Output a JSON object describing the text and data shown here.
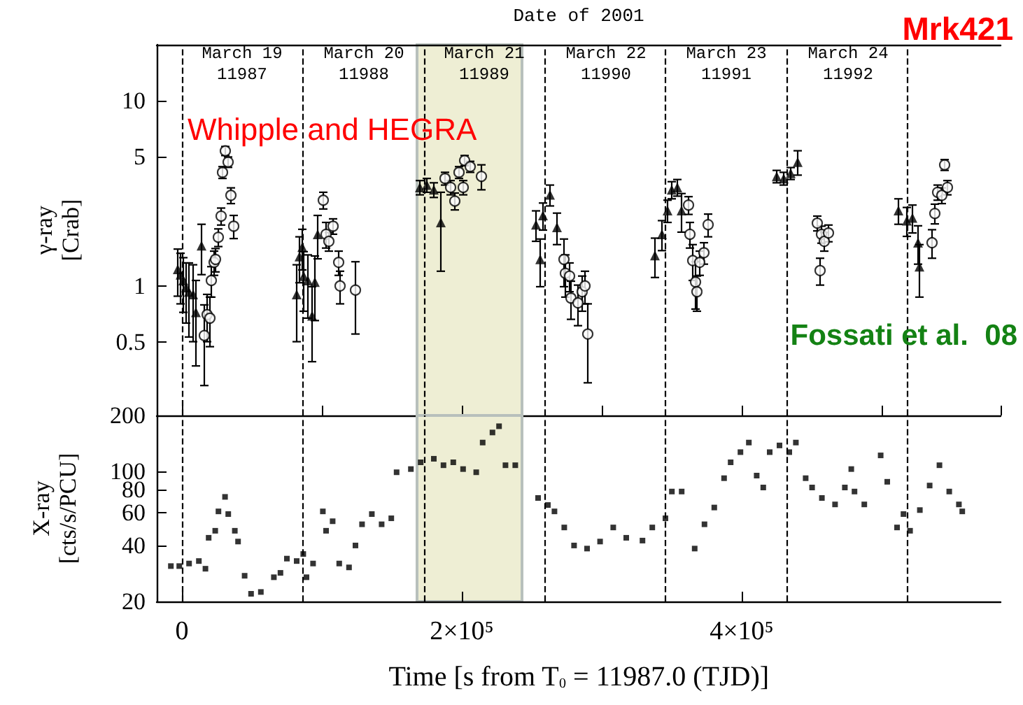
{
  "chart_data": [
    {
      "type": "scatter",
      "title": "Mrk421",
      "ylabel": "γ-ray\n[Crab]",
      "x2label": "Date of 2001",
      "log": "y",
      "xlim": [
        -18000,
        585000
      ],
      "ylim": [
        0.2,
        20
      ],
      "yticks": [
        0.5,
        1,
        5,
        10
      ],
      "tick_labels": "y",
      "annotations": [
        "Whipple and HEGRA",
        "Fossati et al.  08",
        "March 19\n11987",
        "March 20\n11988",
        "March 21\n11989",
        "March 22\n11990",
        "March 23\n11991",
        "March 24\n11992"
      ],
      "ref_lines": [
        {
          "axis": "x",
          "value": 0,
          "line_style": "dashed",
          "color": "#000000"
        },
        {
          "axis": "x",
          "value": 86400,
          "line_style": "dashed",
          "color": "#000000"
        },
        {
          "axis": "x",
          "value": 172800,
          "line_style": "dashed",
          "color": "#000000"
        },
        {
          "axis": "x",
          "value": 259200,
          "line_style": "dashed",
          "color": "#000000"
        },
        {
          "axis": "x",
          "value": 345600,
          "line_style": "dashed",
          "color": "#000000"
        },
        {
          "axis": "x",
          "value": 432000,
          "line_style": "dashed",
          "color": "#000000"
        },
        {
          "axis": "x",
          "value": 518400,
          "line_style": "dashed",
          "color": "#000000"
        }
      ],
      "bands": [
        {
          "axis": "x",
          "from": 168000,
          "to": 243000,
          "color": "#eeeed4"
        }
      ],
      "series": [
        {
          "marker": "triangle",
          "color": "#000000",
          "x": [
            -3000,
            -1000,
            1000,
            3000,
            5000,
            8000,
            10000,
            14000,
            82000,
            84000,
            86000,
            87000,
            90000,
            93000,
            95000,
            97000,
            170000,
            175000,
            180000,
            185000,
            253000,
            256000,
            258000,
            263000,
            268000,
            338000,
            343000,
            347000,
            350000,
            354000,
            357000,
            425000,
            430000,
            435000,
            440000,
            512000,
            518000,
            522000,
            526000,
            527000
          ],
          "values": [
            1.23,
            1.15,
            1.07,
            0.98,
            0.93,
            0.9,
            0.72,
            1.65,
            0.9,
            1.44,
            1.62,
            1.13,
            1.07,
            0.69,
            1.05,
            1.9,
            3.4,
            3.5,
            3.3,
            2.2,
            2.14,
            1.39,
            2.4,
            3.1,
            2.07,
            1.46,
            1.9,
            2.55,
            3.3,
            3.4,
            2.55,
            3.9,
            3.8,
            4.05,
            4.66,
            2.55,
            2.25,
            2.33,
            1.71,
            1.27
          ],
          "errors": [
            0.35,
            0.35,
            0.35,
            0.35,
            0.4,
            0.4,
            0.35,
            0.5,
            0.4,
            0.4,
            0.4,
            0.4,
            0.4,
            0.3,
            0.4,
            0.5,
            0.3,
            0.3,
            0.3,
            1.0,
            0.4,
            0.4,
            0.4,
            0.4,
            0.4,
            0.35,
            0.35,
            0.35,
            0.35,
            0.35,
            0.6,
            0.3,
            0.3,
            0.3,
            0.7,
            0.4,
            0.4,
            0.4,
            0.4,
            0.4
          ]
        },
        {
          "marker": "circle",
          "color": "#000000",
          "x": [
            16000,
            18000,
            20000,
            21000,
            23000,
            24000,
            26000,
            28000,
            29000,
            31000,
            33000,
            35000,
            37000,
            101000,
            103000,
            105000,
            108000,
            112000,
            113000,
            124000,
            188000,
            192000,
            195000,
            198000,
            201000,
            202000,
            206000,
            214000,
            273000,
            274000,
            277000,
            278000,
            283000,
            286000,
            288000,
            290000,
            362000,
            363000,
            365000,
            367000,
            368000,
            370000,
            373000,
            376000,
            454000,
            456000,
            457000,
            459000,
            462000,
            536000,
            538000,
            540000,
            543000,
            545000,
            547000
          ],
          "values": [
            0.54,
            0.7,
            0.67,
            1.07,
            1.34,
            1.39,
            1.83,
            2.38,
            4.1,
            5.35,
            4.66,
            3.08,
            2.1,
            2.9,
            1.9,
            1.74,
            2.1,
            1.34,
            1.0,
            0.95,
            3.8,
            3.4,
            2.87,
            4.1,
            3.4,
            4.75,
            4.4,
            3.9,
            1.39,
            1.17,
            1.13,
            0.86,
            0.81,
            0.93,
            1.0,
            0.55,
            2.73,
            1.9,
            1.37,
            1.05,
            0.93,
            1.34,
            1.51,
            2.14,
            2.18,
            1.21,
            1.9,
            1.74,
            1.93,
            1.71,
            2.46,
            3.2,
            3.08,
            4.5,
            3.4
          ],
          "errors": [
            0.25,
            0.2,
            0.2,
            0.2,
            0.2,
            0.2,
            0.2,
            0.25,
            0.3,
            0.3,
            0.3,
            0.3,
            0.3,
            0.3,
            0.3,
            0.2,
            0.2,
            0.2,
            0.2,
            0.4,
            0.3,
            0.3,
            0.3,
            0.3,
            0.3,
            0.3,
            0.3,
            0.6,
            0.4,
            0.3,
            0.2,
            0.2,
            0.2,
            0.2,
            0.2,
            0.25,
            0.3,
            0.3,
            0.3,
            0.3,
            0.2,
            0.2,
            0.2,
            0.3,
            0.2,
            0.2,
            0.2,
            0.2,
            0.2,
            0.3,
            0.3,
            0.3,
            0.3,
            0.3,
            0.3
          ]
        }
      ]
    },
    {
      "type": "scatter",
      "xlabel": "Time [s from T$_{0}$ = 11987.0 (TJD)]",
      "ylabel": "X-ray\n[cts/s/PCU]",
      "log": "y",
      "xlim": [
        -18000,
        585000
      ],
      "xticks": [
        0,
        {
          "value": 200000,
          "label": "2×10⁵"
        },
        {
          "value": 400000,
          "label": "4×10⁵"
        }
      ],
      "ylim": [
        20,
        200
      ],
      "yticks": [
        20,
        40,
        60,
        80,
        100,
        200
      ],
      "ref_lines": [
        {
          "axis": "x",
          "value": 0,
          "line_style": "dashed",
          "color": "#000000"
        },
        {
          "axis": "x",
          "value": 86400,
          "line_style": "dashed",
          "color": "#000000"
        },
        {
          "axis": "x",
          "value": 172800,
          "line_style": "dashed",
          "color": "#000000"
        },
        {
          "axis": "x",
          "value": 259200,
          "line_style": "dashed",
          "color": "#000000"
        },
        {
          "axis": "x",
          "value": 345600,
          "line_style": "dashed",
          "color": "#000000"
        },
        {
          "axis": "x",
          "value": 432000,
          "line_style": "dashed",
          "color": "#000000"
        },
        {
          "axis": "x",
          "value": 518400,
          "line_style": "dashed",
          "color": "#000000"
        }
      ],
      "bands": [
        {
          "axis": "x",
          "from": 168000,
          "to": 243000,
          "color": "#eeeed4"
        }
      ],
      "series": [
        {
          "marker": "square",
          "color": "#000000",
          "x": [
            -7900,
            -1900,
            5100,
            12100,
            16800,
            19100,
            23800,
            26100,
            30800,
            33100,
            37800,
            40100,
            44800,
            49400,
            56400,
            65700,
            70400,
            75000,
            82000,
            86700,
            89000,
            93700,
            100700,
            103000,
            107700,
            112400,
            119400,
            124000,
            128700,
            135700,
            142700,
            149600,
            153400,
            163600,
            170600,
            180000,
            186900,
            193900,
            200900,
            210300,
            214900,
            221900,
            226600,
            231200,
            238200,
            254500,
            261500,
            266200,
            273200,
            280200,
            289500,
            298800,
            308200,
            317500,
            329100,
            336100,
            345500,
            350100,
            357100,
            366400,
            373400,
            380400,
            387400,
            392100,
            399100,
            405100,
            410700,
            415400,
            420000,
            427000,
            434000,
            438700,
            445700,
            450300,
            457300,
            466700,
            473700,
            478300,
            480600,
            487600,
            499300,
            504000,
            511000,
            515600,
            520300,
            527300,
            534300,
            541300,
            548300,
            555200,
            557600
          ],
          "values": [
            31,
            31,
            32,
            33,
            30,
            44,
            48,
            61,
            73,
            59,
            48,
            42,
            27.5,
            22,
            22.5,
            27,
            28.5,
            34,
            33,
            36,
            27,
            32,
            61,
            48,
            54,
            32,
            30.5,
            40,
            52,
            59,
            52,
            56,
            99,
            103,
            112,
            117,
            108,
            112,
            103,
            99,
            143,
            162,
            175,
            108,
            108,
            72,
            66,
            61,
            50,
            40,
            38.5,
            42,
            50,
            44,
            42.5,
            50,
            56,
            78,
            78,
            38.5,
            52,
            64,
            92,
            112,
            127,
            143,
            95,
            82,
            127,
            138,
            127,
            143,
            92,
            82,
            72,
            66.5,
            82,
            103,
            78,
            66.5,
            122,
            88,
            50,
            59,
            48,
            62,
            84,
            108,
            78,
            66.5,
            61
          ]
        }
      ]
    }
  ]
}
